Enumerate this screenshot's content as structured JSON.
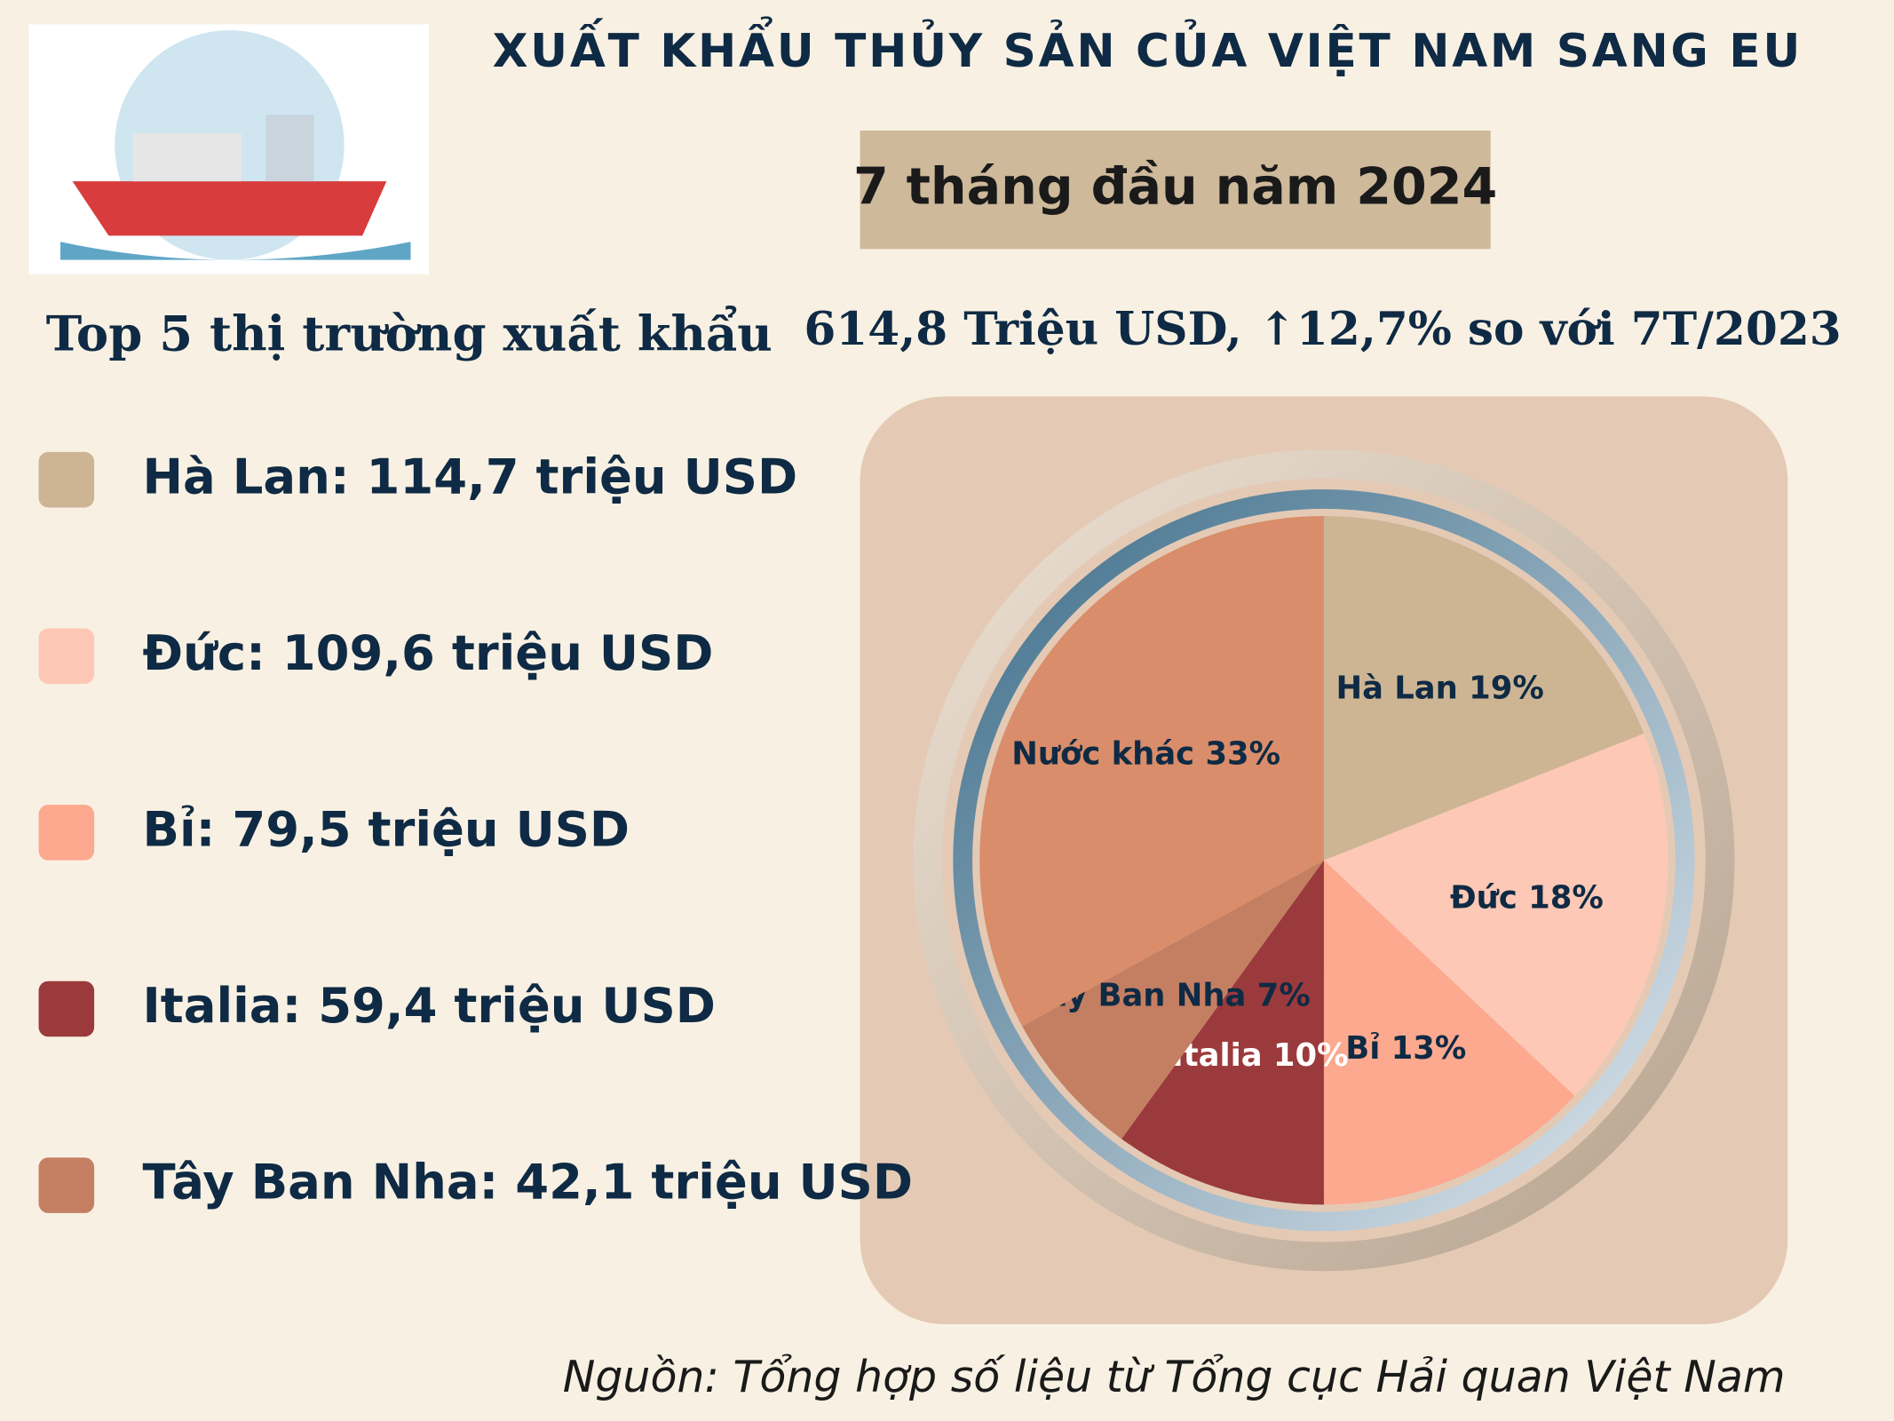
{
  "chart_data": {
    "type": "pie",
    "title": "XUẤT KHẨU THỦY SẢN CỦA VIỆT NAM SANG EU",
    "subtitle": "7 tháng đầu năm 2024",
    "legend_title": "Top 5 thị trường xuất khẩu",
    "annotation": "614,8 Triệu USD, ↑12,7% so với 7T/2023",
    "legend_entries": [
      "Hà Lan: 114,7 triệu USD",
      "Đức: 109,6 triệu USD",
      "Bỉ: 79,5 triệu USD",
      "Italia: 59,4 triệu USD",
      "Tây Ban Nha: 42,1 triệu USD"
    ],
    "categories": [
      "Hà Lan",
      "Đức",
      "Bỉ",
      "Italia",
      "Tây Ban Nha",
      "Nước khác"
    ],
    "values": [
      19,
      18,
      13,
      10,
      7,
      33
    ],
    "value_labels": [
      "19%",
      "18%",
      "13%",
      "10%",
      "7%",
      "33%"
    ],
    "colors": [
      "#cdb594",
      "#fdc8b5",
      "#fca98f",
      "#9b3a3c",
      "#c47f63",
      "#d98d6a"
    ],
    "source": "Nguồn: Tổng hợp số liệu từ Tổng cục Hải quan Việt Nam"
  }
}
